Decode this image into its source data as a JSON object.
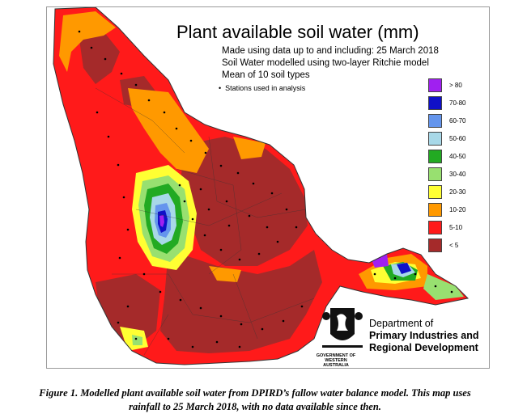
{
  "title": "Plant available soil water (mm)",
  "subtitle_lines": [
    "Made using data up to and including: 25 March 2018",
    "Soil Water modelled using two-layer Ritchie model",
    "Mean of 10 soil types"
  ],
  "stations_note": "Stations used in analysis",
  "legend": [
    {
      "label": "> 80",
      "color": "#a020f0"
    },
    {
      "label": "70-80",
      "color": "#1010c8"
    },
    {
      "label": "60-70",
      "color": "#6495ed"
    },
    {
      "label": "50-60",
      "color": "#a8d8e8"
    },
    {
      "label": "40-50",
      "color": "#22aa22"
    },
    {
      "label": "30-40",
      "color": "#98e070"
    },
    {
      "label": "20-30",
      "color": "#ffff33"
    },
    {
      "label": "10-20",
      "color": "#ff9900"
    },
    {
      "label": "5-10",
      "color": "#ff1a1a"
    },
    {
      "label": "< 5",
      "color": "#a52a2a"
    }
  ],
  "department": {
    "line1": "Department of",
    "line2": "Primary Industries and",
    "line3": "Regional Development",
    "gov_line1": "GOVERNMENT OF",
    "gov_line2": "WESTERN AUSTRALIA"
  },
  "caption_lines": [
    "Figure 1. Modelled plant available soil water from DPIRD’s fallow water balance model. This map uses",
    "rainfall to 25 March 2018, with no data available since then."
  ]
}
